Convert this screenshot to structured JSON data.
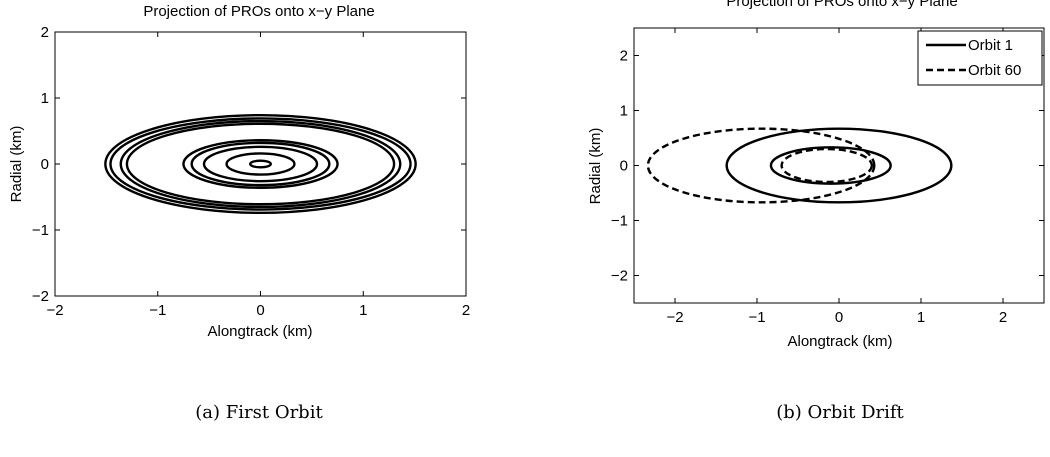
{
  "chart_data": [
    {
      "type": "line",
      "title": "Projection of PROs onto x−y Plane",
      "xlabel": "Alongtrack (km)",
      "ylabel": "Radial (km)",
      "xlim": [
        -2,
        2
      ],
      "ylim": [
        -2,
        2
      ],
      "xticks": [
        "−2",
        "−1",
        "0",
        "1",
        "2"
      ],
      "yticks": [
        "−2",
        "−1",
        "0",
        "1",
        "2"
      ],
      "grid": false,
      "caption": "(a) First Orbit",
      "series": [
        {
          "style": "solid",
          "ellipses": [
            {
              "cx": 0,
              "cy": 0,
              "rx": 1.51,
              "ry": 0.74
            },
            {
              "cx": 0,
              "cy": 0,
              "rx": 1.46,
              "ry": 0.69
            },
            {
              "cx": 0,
              "cy": 0,
              "rx": 1.36,
              "ry": 0.65
            },
            {
              "cx": 0,
              "cy": 0,
              "rx": 1.3,
              "ry": 0.61
            },
            {
              "cx": 0,
              "cy": 0,
              "rx": 0.75,
              "ry": 0.36
            },
            {
              "cx": 0,
              "cy": 0,
              "rx": 0.67,
              "ry": 0.32
            },
            {
              "cx": 0,
              "cy": 0,
              "rx": 0.55,
              "ry": 0.26
            },
            {
              "cx": 0,
              "cy": 0,
              "rx": 0.33,
              "ry": 0.16
            },
            {
              "cx": 0,
              "cy": 0,
              "rx": 0.1,
              "ry": 0.05
            }
          ]
        }
      ]
    },
    {
      "type": "line",
      "title": "Projection of PROs onto x−y Plane",
      "xlabel": "Alongtrack (km)",
      "ylabel": "Radial (km)",
      "xlim": [
        -2.5,
        2.5
      ],
      "ylim": [
        -2.5,
        2.5
      ],
      "xticks": [
        "−2",
        "−1",
        "0",
        "1",
        "2"
      ],
      "yticks": [
        "−2",
        "−1",
        "0",
        "1",
        "2"
      ],
      "grid": false,
      "legend": "top-right",
      "caption": "(b) Orbit Drift",
      "series": [
        {
          "name": "Orbit 1",
          "style": "solid",
          "ellipses": [
            {
              "cx": 0.0,
              "cy": 0.0,
              "rx": 1.37,
              "ry": 0.67
            },
            {
              "cx": -0.1,
              "cy": 0.0,
              "rx": 0.73,
              "ry": 0.33
            }
          ]
        },
        {
          "name": "Orbit 60",
          "style": "dashed",
          "ellipses": [
            {
              "cx": -0.95,
              "cy": 0.0,
              "rx": 1.38,
              "ry": 0.67
            },
            {
              "cx": -0.15,
              "cy": 0.0,
              "rx": 0.55,
              "ry": 0.3
            }
          ]
        }
      ]
    }
  ]
}
